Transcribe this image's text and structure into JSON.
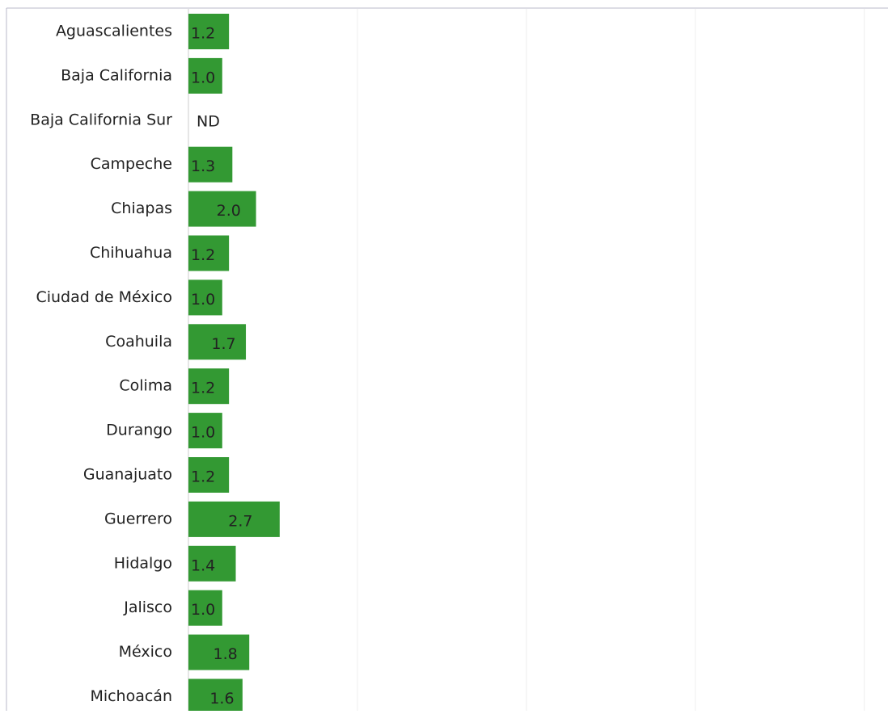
{
  "chart_data": {
    "type": "hbar",
    "categories": [
      "Aguascalientes",
      "Baja California",
      "Baja California Sur",
      "Campeche",
      "Chiapas",
      "Chihuahua",
      "Ciudad de México",
      "Coahuila",
      "Colima",
      "Durango",
      "Guanajuato",
      "Guerrero",
      "Hidalgo",
      "Jalisco",
      "México",
      "Michoacán"
    ],
    "values": [
      1.2,
      1.0,
      null,
      1.3,
      2.0,
      1.2,
      1.0,
      1.7,
      1.2,
      1.0,
      1.2,
      2.7,
      1.4,
      1.0,
      1.8,
      1.6
    ],
    "value_labels": [
      "1.2",
      "1.0",
      "ND",
      "1.3",
      "2.0",
      "1.2",
      "1.0",
      "1.7",
      "1.2",
      "1.0",
      "1.2",
      "2.7",
      "1.4",
      "1.0",
      "1.8",
      "1.6"
    ],
    "color": "#339933",
    "xlim": [
      0,
      20.7
    ],
    "xticks": [
      0,
      5,
      10,
      15,
      20
    ],
    "grid": true
  }
}
